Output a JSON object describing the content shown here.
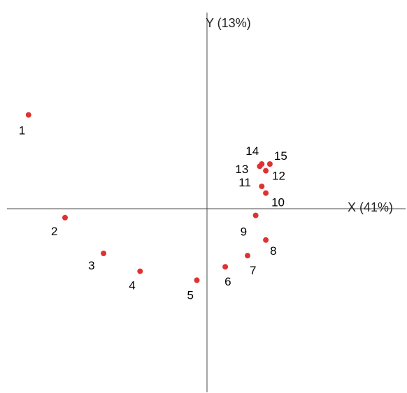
{
  "chart_data": {
    "type": "scatter",
    "xlabel": "X (41%)",
    "ylabel": "Y (13%)",
    "xlim": [
      -1.0,
      1.0
    ],
    "ylim": [
      -0.9,
      0.9
    ],
    "grid": false,
    "legend": "none",
    "marker_color": "#e03131",
    "axis_color": "#4a4a4a",
    "points": [
      {
        "label": "1",
        "x": -0.88,
        "y": 0.42
      },
      {
        "label": "2",
        "x": -0.7,
        "y": -0.04
      },
      {
        "label": "3",
        "x": -0.51,
        "y": -0.2
      },
      {
        "label": "4",
        "x": -0.33,
        "y": -0.28
      },
      {
        "label": "5",
        "x": -0.05,
        "y": -0.32
      },
      {
        "label": "6",
        "x": 0.09,
        "y": -0.26
      },
      {
        "label": "7",
        "x": 0.2,
        "y": -0.21
      },
      {
        "label": "8",
        "x": 0.29,
        "y": -0.14
      },
      {
        "label": "9",
        "x": 0.24,
        "y": -0.03
      },
      {
        "label": "10",
        "x": 0.29,
        "y": 0.07
      },
      {
        "label": "11",
        "x": 0.27,
        "y": 0.1
      },
      {
        "label": "12",
        "x": 0.29,
        "y": 0.17
      },
      {
        "label": "13",
        "x": 0.26,
        "y": 0.19
      },
      {
        "label": "14",
        "x": 0.27,
        "y": 0.2
      },
      {
        "label": "15",
        "x": 0.31,
        "y": 0.2
      }
    ]
  }
}
